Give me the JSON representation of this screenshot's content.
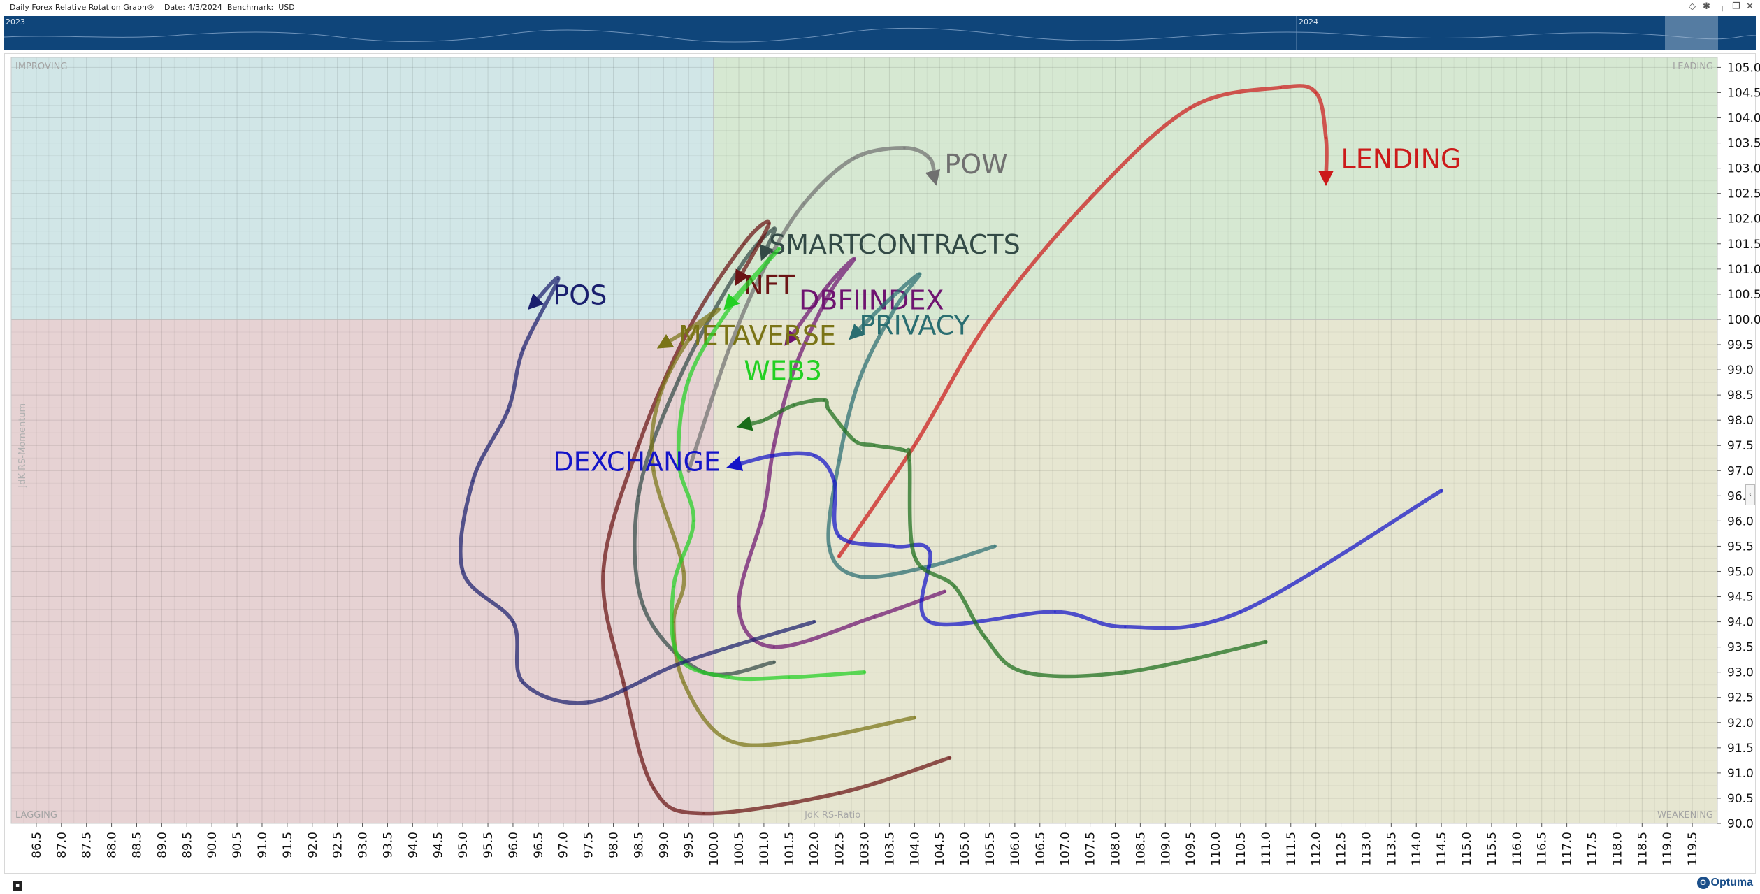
{
  "window": {
    "title": "Daily Forex Relative Rotation Graph®",
    "date_label": "Date: 4/3/2024",
    "benchmark_label": "Benchmark:  USD"
  },
  "timeline": {
    "years": [
      "2023",
      "2024"
    ]
  },
  "brand": {
    "name": "Optuma",
    "mark": "O"
  },
  "chart_data": {
    "type": "scatter",
    "subtype": "relative rotation graph",
    "xlabel": "JdK RS-Ratio",
    "ylabel": "JdK RS-Momentum",
    "xlim": [
      86.0,
      120.0
    ],
    "ylim": [
      90.0,
      105.2
    ],
    "x_ticks": [
      86.5,
      87.0,
      87.5,
      88.0,
      88.5,
      89.0,
      89.5,
      90.0,
      90.5,
      91.0,
      91.5,
      92.0,
      92.5,
      93.0,
      93.5,
      94.0,
      94.5,
      95.0,
      95.5,
      96.0,
      96.5,
      97.0,
      97.5,
      98.0,
      98.5,
      99.0,
      99.5,
      100.0,
      100.5,
      101.0,
      101.5,
      102.0,
      102.5,
      103.0,
      103.5,
      104.0,
      104.5,
      105.0,
      105.5,
      106.0,
      106.5,
      107.0,
      107.5,
      108.0,
      108.5,
      109.0,
      109.5,
      110.0,
      110.5,
      111.0,
      111.5,
      112.0,
      112.5,
      113.0,
      113.5,
      114.0,
      114.5,
      115.0,
      115.5,
      116.0,
      116.5,
      117.0,
      117.5,
      118.0,
      118.5,
      119.0,
      119.5
    ],
    "y_ticks": [
      90.0,
      90.5,
      91.0,
      91.5,
      92.0,
      92.5,
      93.0,
      93.5,
      94.0,
      94.5,
      95.0,
      95.5,
      96.0,
      96.5,
      97.0,
      97.5,
      98.0,
      98.5,
      99.0,
      99.5,
      100.0,
      100.5,
      101.0,
      101.5,
      102.0,
      102.5,
      103.0,
      103.5,
      104.0,
      104.5,
      105.0
    ],
    "quadrants": {
      "improving": {
        "label": "IMPROVING",
        "color": "#d1e6e7"
      },
      "leading": {
        "label": "LEADING",
        "color": "#d6e8d2"
      },
      "lagging": {
        "label": "LAGGING",
        "color": "#e6d2d3"
      },
      "weakening": {
        "label": "WEAKENING",
        "color": "#e6e6d1"
      }
    },
    "series": [
      {
        "name": "LENDING",
        "color": "#cc1a1a",
        "points": [
          [
            102.5,
            95.3
          ],
          [
            104.0,
            97.5
          ],
          [
            105.5,
            100.0
          ],
          [
            107.5,
            102.4
          ],
          [
            109.5,
            104.2
          ],
          [
            111.3,
            104.6
          ],
          [
            112.0,
            104.5
          ],
          [
            112.2,
            103.6
          ],
          [
            112.2,
            102.8
          ]
        ],
        "label_at": [
          112.5,
          103.0
        ]
      },
      {
        "name": "POW",
        "color": "#707070",
        "points": [
          [
            99.5,
            97.0
          ],
          [
            100.3,
            99.4
          ],
          [
            101.0,
            101.0
          ],
          [
            101.8,
            102.3
          ],
          [
            102.8,
            103.2
          ],
          [
            103.8,
            103.4
          ],
          [
            104.3,
            103.2
          ],
          [
            104.4,
            102.8
          ]
        ],
        "label_at": [
          104.6,
          102.9
        ]
      },
      {
        "name": "SMARTCONTRACTS",
        "color": "#334a46",
        "points": [
          [
            101.2,
            93.2
          ],
          [
            99.8,
            93.0
          ],
          [
            98.6,
            94.3
          ],
          [
            98.5,
            96.5
          ],
          [
            99.3,
            98.8
          ],
          [
            100.5,
            101.0
          ],
          [
            101.2,
            101.8
          ],
          [
            101.0,
            101.3
          ]
        ],
        "label_at": [
          101.1,
          101.3
        ]
      },
      {
        "name": "NFT",
        "color": "#6a1414",
        "points": [
          [
            104.7,
            91.3
          ],
          [
            102.5,
            90.6
          ],
          [
            99.8,
            90.2
          ],
          [
            98.8,
            90.7
          ],
          [
            98.2,
            92.8
          ],
          [
            97.8,
            95.0
          ],
          [
            98.5,
            97.5
          ],
          [
            99.5,
            99.8
          ],
          [
            100.6,
            101.5
          ],
          [
            101.1,
            101.9
          ],
          [
            100.5,
            100.8
          ]
        ],
        "label_at": [
          100.6,
          100.5
        ]
      },
      {
        "name": "DBFIINDEX",
        "color": "#6e1370",
        "points": [
          [
            104.6,
            94.6
          ],
          [
            103.2,
            94.1
          ],
          [
            101.2,
            93.5
          ],
          [
            100.5,
            94.3
          ],
          [
            101.0,
            96.2
          ],
          [
            101.2,
            97.5
          ],
          [
            101.6,
            99.0
          ],
          [
            102.3,
            100.5
          ],
          [
            102.8,
            101.2
          ],
          [
            102.3,
            100.7
          ],
          [
            101.5,
            99.6
          ]
        ],
        "label_at": [
          101.7,
          100.2
        ]
      },
      {
        "name": "PRIVACY",
        "color": "#2a6e71",
        "points": [
          [
            105.6,
            95.5
          ],
          [
            104.3,
            95.1
          ],
          [
            102.9,
            94.9
          ],
          [
            102.3,
            95.5
          ],
          [
            102.5,
            97.2
          ],
          [
            102.9,
            98.8
          ],
          [
            103.6,
            100.2
          ],
          [
            104.1,
            100.9
          ],
          [
            103.4,
            100.3
          ],
          [
            102.8,
            99.7
          ]
        ],
        "label_at": [
          102.9,
          99.7
        ]
      },
      {
        "name": "METAVERSE",
        "color": "#7a7416",
        "points": [
          [
            104.0,
            92.1
          ],
          [
            101.5,
            91.6
          ],
          [
            100.2,
            91.7
          ],
          [
            99.4,
            92.8
          ],
          [
            99.2,
            94.0
          ],
          [
            99.4,
            95.0
          ],
          [
            98.8,
            97.0
          ],
          [
            98.9,
            98.4
          ],
          [
            99.5,
            99.6
          ],
          [
            100.1,
            100.2
          ],
          [
            99.5,
            99.8
          ],
          [
            99.0,
            99.5
          ]
        ],
        "label_at": [
          99.3,
          99.5
        ]
      },
      {
        "name": "WEB3",
        "color": "#22d022",
        "points": [
          [
            103.0,
            93.0
          ],
          [
            101.5,
            92.9
          ],
          [
            100.3,
            92.9
          ],
          [
            99.3,
            93.3
          ],
          [
            99.2,
            94.7
          ],
          [
            99.6,
            96.0
          ],
          [
            99.3,
            97.2
          ],
          [
            99.5,
            98.8
          ],
          [
            100.3,
            100.2
          ],
          [
            101.3,
            101.4
          ],
          [
            100.3,
            100.3
          ]
        ],
        "label_at": [
          100.6,
          98.8
        ]
      },
      {
        "name": "DEXCHANGE",
        "color": "#1414c8",
        "points": [
          [
            114.5,
            96.6
          ],
          [
            110.5,
            94.2
          ],
          [
            108.2,
            93.9
          ],
          [
            106.8,
            94.2
          ],
          [
            104.3,
            94.0
          ],
          [
            104.3,
            95.4
          ],
          [
            103.6,
            95.5
          ],
          [
            102.5,
            95.7
          ],
          [
            102.4,
            96.8
          ],
          [
            102.0,
            97.3
          ],
          [
            101.2,
            97.3
          ],
          [
            100.4,
            97.1
          ]
        ],
        "label_at": [
          96.8,
          97.0
        ]
      },
      {
        "name": "POS",
        "color": "#1a1f6e",
        "points": [
          [
            102.0,
            94.0
          ],
          [
            99.4,
            93.2
          ],
          [
            97.5,
            92.4
          ],
          [
            96.2,
            92.8
          ],
          [
            96.0,
            94.0
          ],
          [
            95.0,
            95.0
          ],
          [
            95.2,
            96.8
          ],
          [
            95.9,
            98.2
          ],
          [
            96.2,
            99.4
          ],
          [
            96.9,
            100.8
          ],
          [
            96.4,
            100.3
          ]
        ],
        "label_at": [
          96.8,
          100.3
        ]
      },
      {
        "name": "",
        "color": "#1a6e1a",
        "points": [
          [
            111.0,
            93.6
          ],
          [
            108.2,
            93.0
          ],
          [
            106.2,
            93.0
          ],
          [
            105.4,
            93.7
          ],
          [
            104.8,
            94.7
          ],
          [
            104.0,
            95.3
          ],
          [
            103.9,
            97.2
          ],
          [
            103.8,
            97.4
          ],
          [
            103.2,
            97.5
          ],
          [
            102.8,
            97.6
          ],
          [
            102.3,
            98.2
          ],
          [
            102.2,
            98.4
          ],
          [
            101.6,
            98.3
          ],
          [
            101.0,
            98.0
          ],
          [
            100.6,
            97.9
          ]
        ],
        "label_at": null
      }
    ]
  }
}
